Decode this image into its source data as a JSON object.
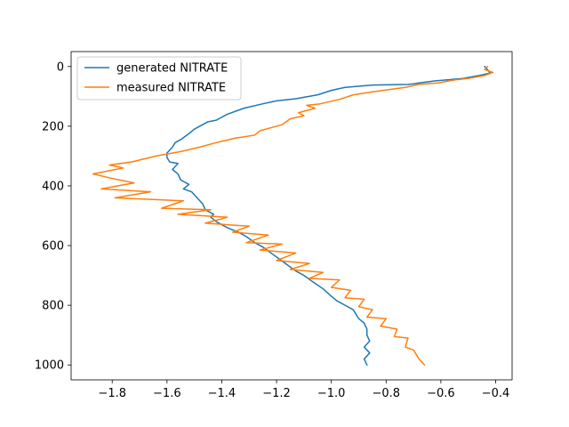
{
  "chart_data": {
    "type": "line",
    "title": "",
    "xlabel": "",
    "ylabel": "",
    "xlim": [
      -1.95,
      -0.34
    ],
    "ylim": [
      1050,
      -50
    ],
    "y_inverted": true,
    "grid": false,
    "legend_placement": "top-left",
    "x_ticks": [
      {
        "value": -1.8,
        "label": "−1.8"
      },
      {
        "value": -1.6,
        "label": "−1.6"
      },
      {
        "value": -1.4,
        "label": "−1.4"
      },
      {
        "value": -1.2,
        "label": "−1.2"
      },
      {
        "value": -1.0,
        "label": "−1.0"
      },
      {
        "value": -0.8,
        "label": "−0.8"
      },
      {
        "value": -0.6,
        "label": "−0.6"
      },
      {
        "value": -0.4,
        "label": "−0.4"
      }
    ],
    "y_ticks": [
      {
        "value": 0,
        "label": "0"
      },
      {
        "value": 200,
        "label": "200"
      },
      {
        "value": 400,
        "label": "400"
      },
      {
        "value": 600,
        "label": "600"
      },
      {
        "value": 800,
        "label": "800"
      },
      {
        "value": 1000,
        "label": "1000"
      }
    ],
    "series": [
      {
        "name": "generated NITRATE",
        "color": "#1f77b4",
        "points": [
          [
            -0.44,
            0
          ],
          [
            -0.43,
            10
          ],
          [
            -0.42,
            22
          ],
          [
            -0.46,
            30
          ],
          [
            -0.52,
            40
          ],
          [
            -0.62,
            48
          ],
          [
            -0.68,
            55
          ],
          [
            -0.7,
            58
          ],
          [
            -0.72,
            60
          ],
          [
            -0.85,
            62
          ],
          [
            -0.95,
            70
          ],
          [
            -1.0,
            80
          ],
          [
            -1.05,
            95
          ],
          [
            -1.13,
            108
          ],
          [
            -1.2,
            115
          ],
          [
            -1.25,
            125
          ],
          [
            -1.32,
            140
          ],
          [
            -1.38,
            160
          ],
          [
            -1.42,
            180
          ],
          [
            -1.45,
            185
          ],
          [
            -1.5,
            210
          ],
          [
            -1.52,
            225
          ],
          [
            -1.55,
            245
          ],
          [
            -1.57,
            255
          ],
          [
            -1.58,
            270
          ],
          [
            -1.6,
            290
          ],
          [
            -1.6,
            305
          ],
          [
            -1.59,
            320
          ],
          [
            -1.56,
            325
          ],
          [
            -1.58,
            345
          ],
          [
            -1.56,
            360
          ],
          [
            -1.55,
            380
          ],
          [
            -1.52,
            395
          ],
          [
            -1.54,
            410
          ],
          [
            -1.51,
            420
          ],
          [
            -1.49,
            440
          ],
          [
            -1.47,
            460
          ],
          [
            -1.46,
            480
          ],
          [
            -1.43,
            495
          ],
          [
            -1.44,
            505
          ],
          [
            -1.42,
            520
          ],
          [
            -1.38,
            540
          ],
          [
            -1.34,
            555
          ],
          [
            -1.31,
            570
          ],
          [
            -1.28,
            590
          ],
          [
            -1.25,
            605
          ],
          [
            -1.22,
            625
          ],
          [
            -1.19,
            645
          ],
          [
            -1.16,
            665
          ],
          [
            -1.13,
            685
          ],
          [
            -1.1,
            700
          ],
          [
            -1.07,
            720
          ],
          [
            -1.03,
            745
          ],
          [
            -1.0,
            770
          ],
          [
            -0.98,
            785
          ],
          [
            -0.95,
            800
          ],
          [
            -0.92,
            815
          ],
          [
            -0.91,
            830
          ],
          [
            -0.9,
            845
          ],
          [
            -0.88,
            860
          ],
          [
            -0.87,
            880
          ],
          [
            -0.87,
            900
          ],
          [
            -0.86,
            920
          ],
          [
            -0.88,
            940
          ],
          [
            -0.86,
            960
          ],
          [
            -0.88,
            980
          ],
          [
            -0.87,
            1000
          ]
        ]
      },
      {
        "name": "measured NITRATE",
        "color": "#ff7f0e",
        "points": [
          [
            -0.43,
            0
          ],
          [
            -0.44,
            10
          ],
          [
            -0.41,
            20
          ],
          [
            -0.44,
            30
          ],
          [
            -0.5,
            40
          ],
          [
            -0.55,
            45
          ],
          [
            -0.61,
            55
          ],
          [
            -0.68,
            60
          ],
          [
            -0.73,
            70
          ],
          [
            -0.85,
            85
          ],
          [
            -0.92,
            95
          ],
          [
            -0.97,
            110
          ],
          [
            -1.04,
            125
          ],
          [
            -1.09,
            130
          ],
          [
            -1.06,
            140
          ],
          [
            -1.12,
            155
          ],
          [
            -1.1,
            165
          ],
          [
            -1.15,
            175
          ],
          [
            -1.18,
            195
          ],
          [
            -1.22,
            205
          ],
          [
            -1.26,
            215
          ],
          [
            -1.28,
            230
          ],
          [
            -1.35,
            240
          ],
          [
            -1.42,
            255
          ],
          [
            -1.48,
            270
          ],
          [
            -1.55,
            285
          ],
          [
            -1.64,
            300
          ],
          [
            -1.73,
            320
          ],
          [
            -1.81,
            330
          ],
          [
            -1.76,
            340
          ],
          [
            -1.87,
            360
          ],
          [
            -1.8,
            375
          ],
          [
            -1.72,
            390
          ],
          [
            -1.84,
            410
          ],
          [
            -1.66,
            420
          ],
          [
            -1.79,
            440
          ],
          [
            -1.54,
            450
          ],
          [
            -1.62,
            475
          ],
          [
            -1.44,
            480
          ],
          [
            -1.56,
            495
          ],
          [
            -1.38,
            505
          ],
          [
            -1.46,
            525
          ],
          [
            -1.3,
            535
          ],
          [
            -1.36,
            555
          ],
          [
            -1.23,
            565
          ],
          [
            -1.31,
            590
          ],
          [
            -1.18,
            595
          ],
          [
            -1.26,
            615
          ],
          [
            -1.13,
            625
          ],
          [
            -1.2,
            650
          ],
          [
            -1.08,
            660
          ],
          [
            -1.15,
            680
          ],
          [
            -1.03,
            690
          ],
          [
            -1.08,
            710
          ],
          [
            -0.97,
            715
          ],
          [
            -1.0,
            740
          ],
          [
            -0.93,
            750
          ],
          [
            -0.95,
            775
          ],
          [
            -0.88,
            780
          ],
          [
            -0.9,
            805
          ],
          [
            -0.85,
            815
          ],
          [
            -0.87,
            840
          ],
          [
            -0.8,
            845
          ],
          [
            -0.82,
            870
          ],
          [
            -0.76,
            880
          ],
          [
            -0.77,
            905
          ],
          [
            -0.72,
            910
          ],
          [
            -0.73,
            940
          ],
          [
            -0.7,
            950
          ],
          [
            -0.68,
            980
          ],
          [
            -0.66,
            1000
          ]
        ]
      }
    ]
  }
}
